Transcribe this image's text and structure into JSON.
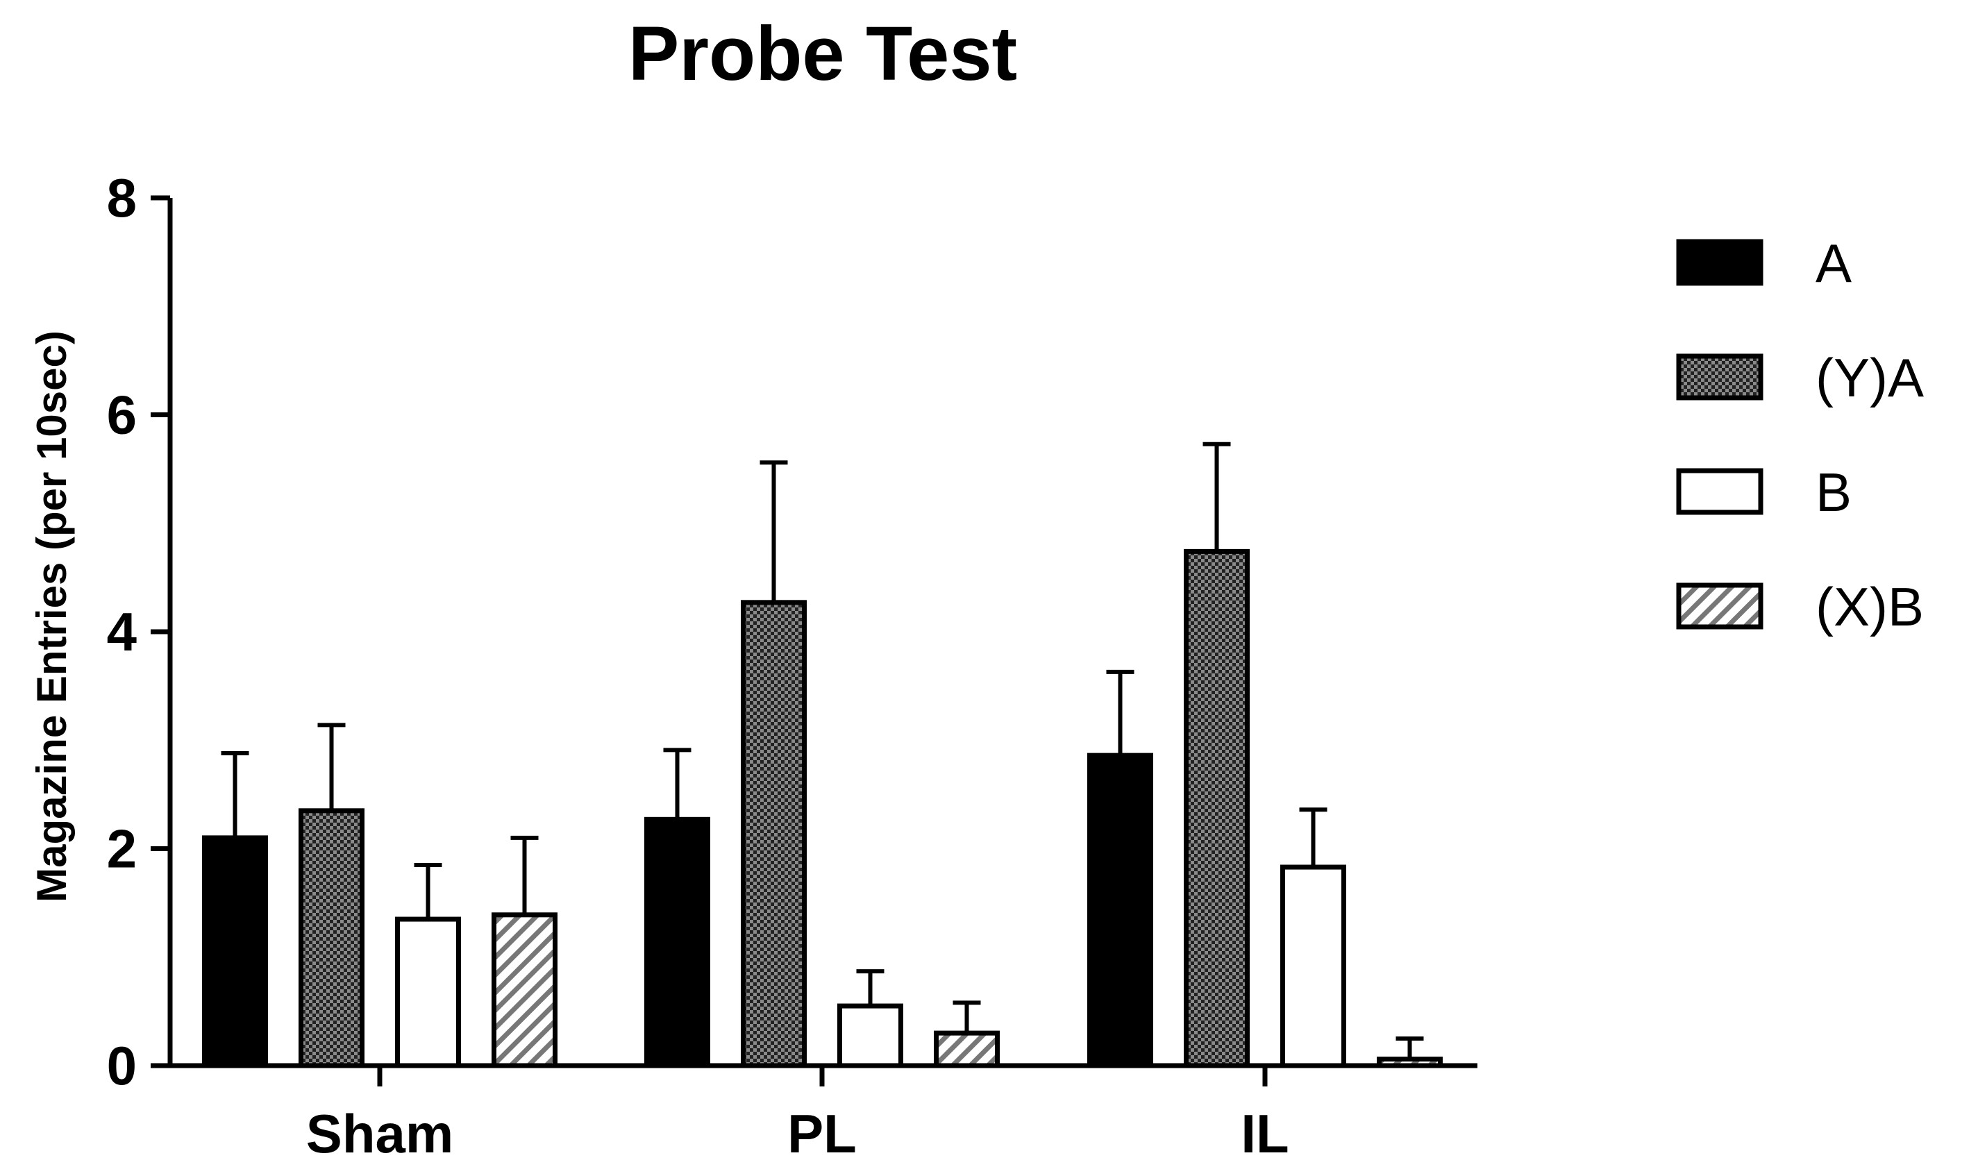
{
  "chart_data": {
    "type": "bar",
    "title": "Probe Test",
    "xlabel": "",
    "ylabel": "Magazine Entries (per 10sec)",
    "ylim": [
      0,
      8
    ],
    "yticks": [
      0,
      2,
      4,
      6,
      8
    ],
    "categories": [
      "Sham",
      "PL",
      "IL"
    ],
    "series": [
      {
        "name": "A",
        "fill": "solid",
        "color": "#000000",
        "values": [
          2.1,
          2.27,
          2.86
        ],
        "errors": [
          0.78,
          0.64,
          0.77
        ]
      },
      {
        "name": "(Y)A",
        "fill": "checker",
        "color": "#555555",
        "values": [
          2.35,
          4.27,
          4.74
        ],
        "errors": [
          0.79,
          1.29,
          0.99
        ]
      },
      {
        "name": "B",
        "fill": "open",
        "color": "#ffffff",
        "values": [
          1.35,
          0.55,
          1.83
        ],
        "errors": [
          0.5,
          0.32,
          0.53
        ]
      },
      {
        "name": "(X)B",
        "fill": "hatch",
        "color": "#888888",
        "values": [
          1.39,
          0.3,
          0.06
        ],
        "errors": [
          0.71,
          0.28,
          0.19
        ]
      }
    ],
    "grid": false,
    "legend": "right"
  }
}
